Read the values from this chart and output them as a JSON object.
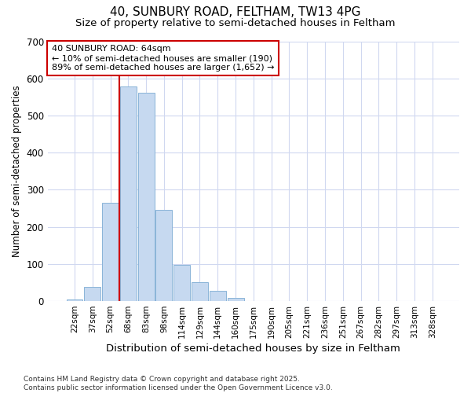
{
  "title1": "40, SUNBURY ROAD, FELTHAM, TW13 4PG",
  "title2": "Size of property relative to semi-detached houses in Feltham",
  "xlabel": "Distribution of semi-detached houses by size in Feltham",
  "ylabel": "Number of semi-detached properties",
  "categories": [
    "22sqm",
    "37sqm",
    "52sqm",
    "68sqm",
    "83sqm",
    "98sqm",
    "114sqm",
    "129sqm",
    "144sqm",
    "160sqm",
    "175sqm",
    "190sqm",
    "205sqm",
    "221sqm",
    "236sqm",
    "251sqm",
    "267sqm",
    "282sqm",
    "297sqm",
    "313sqm",
    "328sqm"
  ],
  "values": [
    5,
    38,
    265,
    578,
    562,
    245,
    98,
    50,
    28,
    8,
    1,
    0,
    0,
    0,
    0,
    0,
    0,
    0,
    0,
    0,
    0
  ],
  "bar_color": "#c6d9f0",
  "bar_edge_color": "#8ab4d8",
  "vline_x": 2.5,
  "vline_color": "#cc0000",
  "annotation_text": "40 SUNBURY ROAD: 64sqm\n← 10% of semi-detached houses are smaller (190)\n89% of semi-detached houses are larger (1,652) →",
  "annotation_box_color": "#ffffff",
  "annotation_box_edge": "#cc0000",
  "footer_text": "Contains HM Land Registry data © Crown copyright and database right 2025.\nContains public sector information licensed under the Open Government Licence v3.0.",
  "background_color": "#ffffff",
  "plot_bg_color": "#ffffff",
  "ylim": [
    0,
    700
  ],
  "yticks": [
    0,
    100,
    200,
    300,
    400,
    500,
    600,
    700
  ],
  "grid_color": "#d0d8f0",
  "title_fontsize": 11,
  "subtitle_fontsize": 9.5
}
